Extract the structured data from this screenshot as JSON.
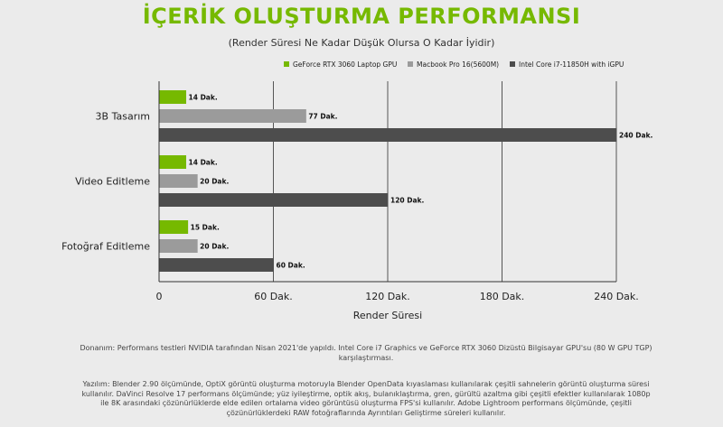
{
  "colors": {
    "title": "#76b900",
    "series": [
      "#76b900",
      "#9b9b9b",
      "#4d4d4d"
    ],
    "grid": "#555555"
  },
  "chart_data": {
    "type": "bar",
    "orientation": "horizontal",
    "title": "İÇERİK OLUŞTURMA PERFORMANSI",
    "subtitle": "(Render Süresi Ne Kadar Düşük Olursa O Kadar İyidir)",
    "xlabel": "Render Süresi",
    "ylabel": "",
    "xlim": [
      0,
      240
    ],
    "x_ticks": [
      0,
      60,
      120,
      180,
      240
    ],
    "x_tick_labels": [
      "0",
      "60 Dak.",
      "120 Dak.",
      "180 Dak.",
      "240 Dak."
    ],
    "categories": [
      "3B Tasarım",
      "Video Editleme",
      "Fotoğraf Editleme"
    ],
    "legend_position": "top-right",
    "grid": true,
    "series": [
      {
        "name": "GeForce RTX 3060 Laptop GPU",
        "values": [
          14,
          14,
          15
        ],
        "labels": [
          "14 Dak.",
          "14 Dak.",
          "15 Dak."
        ]
      },
      {
        "name": "Macbook Pro 16(5600M)",
        "values": [
          77,
          20,
          20
        ],
        "labels": [
          "77 Dak.",
          "20 Dak.",
          "20 Dak."
        ]
      },
      {
        "name": "Intel Core i7-11850H with iGPU",
        "values": [
          240,
          120,
          60
        ],
        "labels": [
          "240 Dak.",
          "120 Dak.",
          "60 Dak."
        ]
      }
    ]
  },
  "footnotes": {
    "hardware": "Donanım:  Performans testleri NVIDIA tarafından Nisan 2021'de yapıldı.  Intel Core i7 Graphics ve GeForce RTX 3060 Dizüstü Bilgisayar GPU'su (80 W GPU TGP) karşılaştırması.",
    "software": "Yazılım: Blender 2.90 ölçümünde, OptiX görüntü oluşturma motoruyla Blender OpenData kıyaslaması kullanılarak çeşitli sahnelerin görüntü oluşturma süresi kullanılır.  DaVinci Resolve 17 performans ölçümünde; yüz iyileştirme, optik akış, bulanıklaştırma, gren, gürültü azaltma gibi çeşitli efektler kullanılarak 1080p ile 8K arasındaki çözünürlüklerde elde edilen ortalama video görüntüsü oluşturma FPS'si kullanılır.  Adobe Lightroom performans ölçümünde, çeşitli çözünürlüklerdeki RAW fotoğraflarında Ayrıntıları Geliştirme süreleri kullanılır."
  }
}
